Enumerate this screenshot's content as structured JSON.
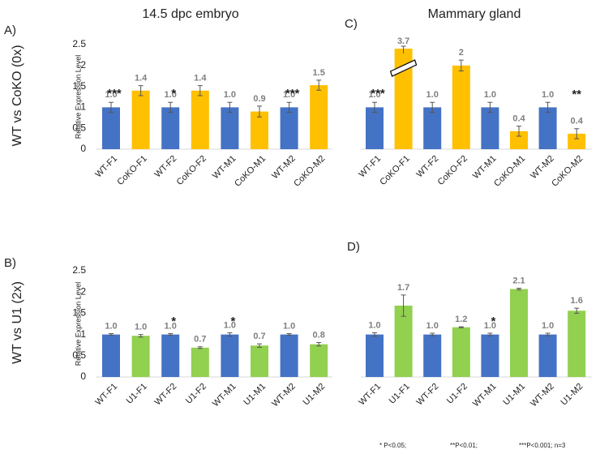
{
  "column_titles": [
    "14.5 dpc embryo",
    "Mammary gland"
  ],
  "row_labels": [
    "WT vs CoKO (0x)",
    "WT vs U1 (2x)"
  ],
  "footnote": [
    "* P<0.05;",
    "**P<0.01;",
    "***P<0.001; n=3"
  ],
  "chart_data": [
    {
      "type": "bar",
      "label": "A)",
      "ylabel": "Relative Expression Level",
      "categories": [
        "WT-F1",
        "CoKO-F1",
        "WT-F2",
        "CoKO-F2",
        "WT-M1",
        "CoKO-M1",
        "WT-M2",
        "CoKO-M2"
      ],
      "values": [
        1,
        1.4,
        1,
        1.4,
        1,
        0.9,
        1,
        1.53
      ],
      "value_labels": [
        "1.0",
        "1.4",
        "1.0",
        "1.4",
        "1.0",
        "0.9",
        "1.0",
        "1.5"
      ],
      "errors": [
        0.12,
        0.12,
        0.12,
        0.12,
        0.12,
        0.13,
        0.12,
        0.12
      ],
      "significance": [
        "***",
        null,
        "*",
        null,
        null,
        null,
        "***",
        null
      ],
      "bar_colors": [
        "#4472c4",
        "#ffc000"
      ],
      "ylim": [
        0,
        2.5
      ],
      "yticks": [
        0,
        0.5,
        1,
        1.5,
        2,
        2.5
      ]
    },
    {
      "type": "bar",
      "label": "B)",
      "ylabel": "Relative Expression Level",
      "categories": [
        "WT-F1",
        "U1-F1",
        "WT-F2",
        "U1-F2",
        "WT-M1",
        "U1-M1",
        "WT-M2",
        "U1-M2"
      ],
      "values": [
        1,
        0.97,
        1,
        0.69,
        1,
        0.74,
        1,
        0.77
      ],
      "value_labels": [
        "1.0",
        "1.0",
        "1.0",
        "0.7",
        "1.0",
        "0.7",
        "1.0",
        "0.8"
      ],
      "errors": [
        0.02,
        0.03,
        0.02,
        0.02,
        0.04,
        0.04,
        0.02,
        0.04
      ],
      "significance": [
        null,
        null,
        "*",
        null,
        "*",
        null,
        null,
        null
      ],
      "bar_colors": [
        "#4472c4",
        "#92d050"
      ],
      "ylim": [
        0,
        2.5
      ],
      "yticks": [
        0,
        0.5,
        1,
        1.5,
        2,
        2.5
      ]
    },
    {
      "type": "bar",
      "label": "C)",
      "categories": [
        "WT-F1",
        "CoKO-F1",
        "WT-F2",
        "CoKO-F2",
        "WT-M1",
        "CoKO-M1",
        "WT-M2",
        "CoKO-M2"
      ],
      "values": [
        1,
        3.7,
        1,
        2,
        1,
        0.43,
        1,
        0.37
      ],
      "value_labels": [
        "1.0",
        "3.7",
        "1.0",
        "2",
        "1.0",
        "0.4",
        "1.0",
        "0.4"
      ],
      "errors": [
        0.12,
        0.1,
        0.12,
        0.13,
        0.12,
        0.12,
        0.12,
        0.12
      ],
      "significance": [
        "***",
        null,
        null,
        null,
        null,
        null,
        null,
        "**"
      ],
      "bar_colors": [
        "#4472c4",
        "#ffc000"
      ],
      "ylim": [
        0,
        2.5
      ]
    },
    {
      "type": "bar",
      "label": "D)",
      "categories": [
        "WT-F1",
        "U1-F1",
        "WT-F2",
        "U1-F2",
        "WT-M1",
        "U1-M1",
        "WT-M2",
        "U1-M2"
      ],
      "values": [
        1,
        1.68,
        1,
        1.17,
        1,
        2.07,
        1,
        1.56
      ],
      "value_labels": [
        "1.0",
        "1.7",
        "1.0",
        "1.2",
        "1.0",
        "2.1",
        "1.0",
        "1.6"
      ],
      "errors": [
        0.04,
        0.25,
        0.03,
        0.01,
        0.03,
        0.02,
        0.03,
        0.06
      ],
      "significance": [
        null,
        null,
        null,
        null,
        "*",
        null,
        null,
        null
      ],
      "bar_colors": [
        "#4472c4",
        "#92d050"
      ],
      "ylim": [
        0,
        2.5
      ]
    }
  ]
}
